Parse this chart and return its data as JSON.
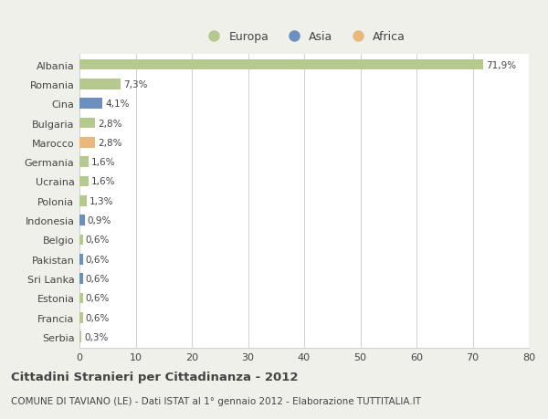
{
  "countries": [
    "Albania",
    "Romania",
    "Cina",
    "Bulgaria",
    "Marocco",
    "Germania",
    "Ucraina",
    "Polonia",
    "Indonesia",
    "Belgio",
    "Pakistan",
    "Sri Lanka",
    "Estonia",
    "Francia",
    "Serbia"
  ],
  "values": [
    71.9,
    7.3,
    4.1,
    2.8,
    2.8,
    1.6,
    1.6,
    1.3,
    0.9,
    0.6,
    0.6,
    0.6,
    0.6,
    0.6,
    0.3
  ],
  "labels": [
    "71,9%",
    "7,3%",
    "4,1%",
    "2,8%",
    "2,8%",
    "1,6%",
    "1,6%",
    "1,3%",
    "0,9%",
    "0,6%",
    "0,6%",
    "0,6%",
    "0,6%",
    "0,6%",
    "0,3%"
  ],
  "continents": [
    "Europa",
    "Europa",
    "Asia",
    "Europa",
    "Africa",
    "Europa",
    "Europa",
    "Europa",
    "Asia",
    "Europa",
    "Asia",
    "Asia",
    "Europa",
    "Europa",
    "Europa"
  ],
  "colors": {
    "Europa": "#b5c98e",
    "Asia": "#6b8fbe",
    "Africa": "#e8b87c"
  },
  "xlim": [
    0,
    80
  ],
  "xticks": [
    0,
    10,
    20,
    30,
    40,
    50,
    60,
    70,
    80
  ],
  "title": "Cittadini Stranieri per Cittadinanza - 2012",
  "subtitle": "COMUNE DI TAVIANO (LE) - Dati ISTAT al 1° gennaio 2012 - Elaborazione TUTTITALIA.IT",
  "bg_color": "#f0f0eb",
  "bar_bg_color": "#ffffff",
  "grid_color": "#d0d0d0",
  "text_color": "#444444"
}
